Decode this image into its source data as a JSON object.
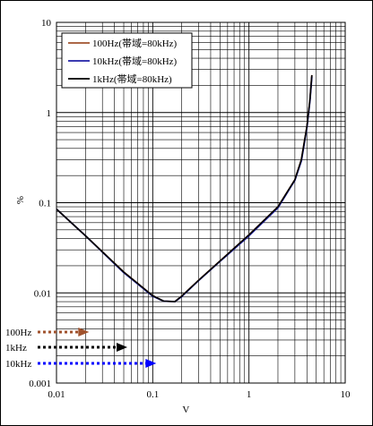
{
  "chart_data": {
    "type": "line",
    "xlabel": "V",
    "ylabel": "%",
    "x_scale": "log",
    "y_scale": "log",
    "xlim": [
      0.01,
      10
    ],
    "ylim": [
      0.001,
      10
    ],
    "grid": true,
    "legend_position": "top-left",
    "x_tick_labels": [
      "0.01",
      "0.1",
      "1",
      "10"
    ],
    "y_tick_labels": [
      "0.001",
      "0.01",
      "0.1",
      "1",
      "10"
    ],
    "series": [
      {
        "name": "100Hz(帯域=80kHz)",
        "color": "#a0522d",
        "x": [
          0.01,
          0.02,
          0.05,
          0.1,
          0.13,
          0.17,
          0.2,
          0.3,
          0.5,
          1,
          2,
          3,
          3.5,
          4,
          4.3,
          4.5
        ],
        "y": [
          0.085,
          0.043,
          0.017,
          0.0093,
          0.0081,
          0.008,
          0.0092,
          0.0138,
          0.0226,
          0.044,
          0.09,
          0.18,
          0.3,
          0.7,
          1.4,
          2.6
        ]
      },
      {
        "name": "10kHz(帯域=80kHz)",
        "color": "#1f1fa6",
        "x": [
          0.01,
          0.02,
          0.05,
          0.1,
          0.13,
          0.17,
          0.2,
          0.3,
          0.5,
          1,
          2,
          3,
          3.5,
          4,
          4.3,
          4.5
        ],
        "y": [
          0.085,
          0.043,
          0.0168,
          0.0092,
          0.0081,
          0.008,
          0.0091,
          0.0137,
          0.0224,
          0.043,
          0.088,
          0.178,
          0.29,
          0.68,
          1.35,
          2.5
        ]
      },
      {
        "name": "1kHz(帯域=80kHz)",
        "color": "#000000",
        "x": [
          0.01,
          0.02,
          0.05,
          0.1,
          0.13,
          0.17,
          0.2,
          0.3,
          0.5,
          1,
          2,
          3,
          3.5,
          4,
          4.3,
          4.5
        ],
        "y": [
          0.085,
          0.043,
          0.017,
          0.0093,
          0.0081,
          0.008,
          0.0092,
          0.0138,
          0.0226,
          0.044,
          0.09,
          0.18,
          0.3,
          0.7,
          1.4,
          2.6
        ]
      }
    ],
    "annotations": [
      {
        "label": "100Hz",
        "color": "#a0522d",
        "arrow_to_x": 0.02
      },
      {
        "label": "1kHz",
        "color": "#000000",
        "arrow_to_x": 0.05
      },
      {
        "label": "10kHz",
        "color": "#0000ff",
        "arrow_to_x": 0.1
      }
    ]
  }
}
